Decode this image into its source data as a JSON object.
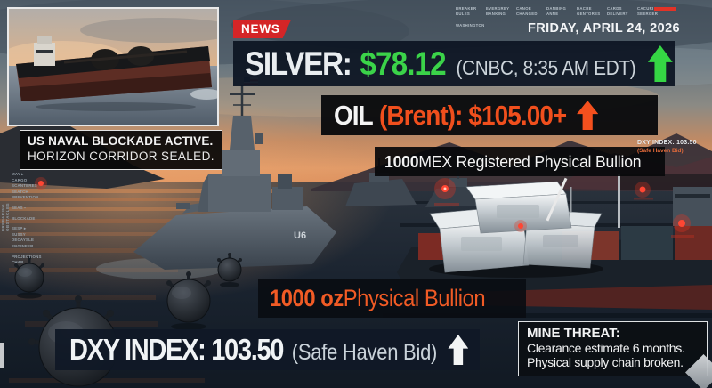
{
  "header": {
    "news_badge": "NEWS",
    "date": "FRIDAY, APRIL 24, 2026",
    "ticker_items": [
      "BREAKER\nRULES\n—\nWASHINGTON",
      "EVERGREY\nBANKING",
      "CANOE\nCHANGED",
      "DANBING\nANNE",
      "DACRE\nGENTORES",
      "CARDS\nDELIVERY",
      "CACURI\nSEERGER"
    ]
  },
  "quotes": {
    "silver": {
      "label": "SILVER:",
      "price": "$78.12",
      "source": "(CNBC, 8:35 AM EDT)",
      "direction": "up"
    },
    "oil": {
      "label": "OIL",
      "detail": "(Brent): $105.00+",
      "direction": "up"
    },
    "dxy": {
      "label": "DXY INDEX: 103.50",
      "note": "(Safe Haven Bid)",
      "direction": "up"
    },
    "dxy_mini": {
      "line1": "DXY INDEX: 103.50",
      "line2": "(Safe Haven Bid)"
    }
  },
  "callouts": {
    "blockade": {
      "line1": "US NAVAL BLOCKADE ACTIVE.",
      "line2": "HORIZON CORRIDOR SEALED."
    },
    "mex_bullion": {
      "bold": "1000",
      "rest": " MEX Registered Physical Bullion"
    },
    "oz_bullion": {
      "bold": "1000 oz",
      "rest": " Physical Bullion"
    },
    "mine_threat": {
      "title": "MINE THREAT:",
      "line1": "Clearance estimate 6 months.",
      "line2": "Physical supply chain broken."
    }
  },
  "scene": {
    "hull_number": "U6"
  },
  "side_notes": [
    "MAY ▸\nCARGO\nSCANTERES\nSEATCH\nPREVENTION",
    "SEAS ▪",
    "BLOCKADE",
    "SESP ▸\nSUSSY\nDECAYSLE\nENGINEER",
    "PROJECTIONS\nCHAR"
  ],
  "left_vertical_text": "PREPARING OBSTACLES",
  "colors": {
    "news_red": "#d42527",
    "silver_green": "#3bd349",
    "oil_orange": "#f04f1d",
    "bullion_orange": "#f15b25",
    "panel_navy": "#10192a",
    "panel_black": "#0a0b0c"
  }
}
